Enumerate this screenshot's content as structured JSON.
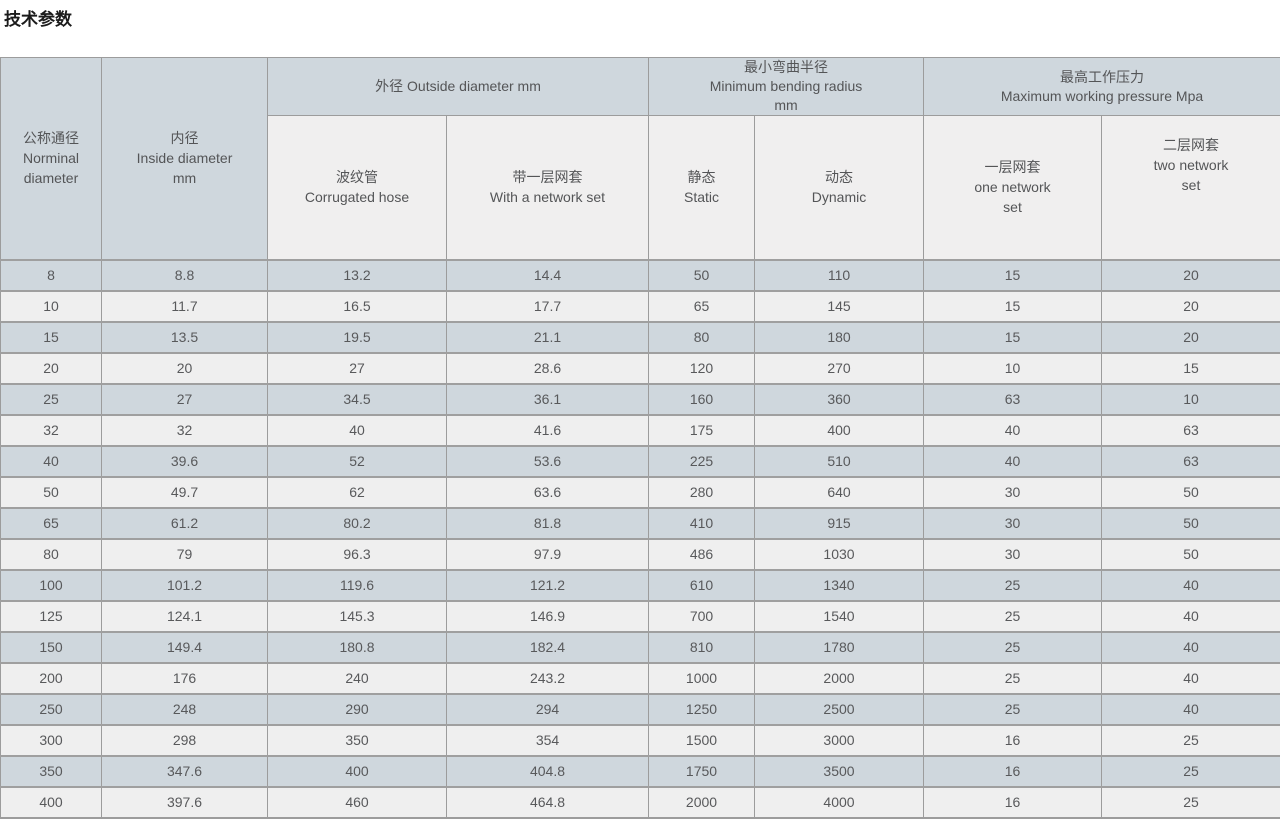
{
  "page": {
    "title": "技术参数"
  },
  "colors": {
    "header_blue_gray": "#cfd7dd",
    "subheader_bg": "#f0efef",
    "row_odd_bg": "#cfd7dd",
    "row_even_bg": "#efefef",
    "border": "#9c9c9c",
    "text": "#58595b",
    "title_text": "#1b1b1b"
  },
  "table": {
    "header": {
      "nominal": [
        "公称通径",
        "Norminal",
        "diameter"
      ],
      "inside": [
        "内径",
        "Inside diameter",
        "mm"
      ],
      "outside_group": [
        "外径 Outside diameter mm"
      ],
      "bend_group": [
        "最小弯曲半径",
        "Minimum bending radius",
        "mm"
      ],
      "pressure_group": [
        "最高工作压力",
        "Maximum working pressure Mpa"
      ],
      "corrugated": [
        "波纹管",
        "Corrugated hose"
      ],
      "with_network": [
        "带一层网套",
        "With a network set"
      ],
      "static": [
        "静态",
        "Static"
      ],
      "dynamic": [
        "动态",
        "Dynamic"
      ],
      "one_network": [
        "一层网套",
        "one network",
        "set"
      ],
      "two_network": [
        "二层网套",
        "two network",
        "set"
      ]
    },
    "rows": [
      [
        "8",
        "8.8",
        "13.2",
        "14.4",
        "50",
        "110",
        "15",
        "20"
      ],
      [
        "10",
        "11.7",
        "16.5",
        "17.7",
        "65",
        "145",
        "15",
        "20"
      ],
      [
        "15",
        "13.5",
        "19.5",
        "21.1",
        "80",
        "180",
        "15",
        "20"
      ],
      [
        "20",
        "20",
        "27",
        "28.6",
        "120",
        "270",
        "10",
        "15"
      ],
      [
        "25",
        "27",
        "34.5",
        "36.1",
        "160",
        "360",
        "63",
        "10"
      ],
      [
        "32",
        "32",
        "40",
        "41.6",
        "175",
        "400",
        "40",
        "63"
      ],
      [
        "40",
        "39.6",
        "52",
        "53.6",
        "225",
        "510",
        "40",
        "63"
      ],
      [
        "50",
        "49.7",
        "62",
        "63.6",
        "280",
        "640",
        "30",
        "50"
      ],
      [
        "65",
        "61.2",
        "80.2",
        "81.8",
        "410",
        "915",
        "30",
        "50"
      ],
      [
        "80",
        "79",
        "96.3",
        "97.9",
        "486",
        "1030",
        "30",
        "50"
      ],
      [
        "100",
        "101.2",
        "119.6",
        "121.2",
        "610",
        "1340",
        "25",
        "40"
      ],
      [
        "125",
        "124.1",
        "145.3",
        "146.9",
        "700",
        "1540",
        "25",
        "40"
      ],
      [
        "150",
        "149.4",
        "180.8",
        "182.4",
        "810",
        "1780",
        "25",
        "40"
      ],
      [
        "200",
        "176",
        "240",
        "243.2",
        "1000",
        "2000",
        "25",
        "40"
      ],
      [
        "250",
        "248",
        "290",
        "294",
        "1250",
        "2500",
        "25",
        "40"
      ],
      [
        "300",
        "298",
        "350",
        "354",
        "1500",
        "3000",
        "16",
        "25"
      ],
      [
        "350",
        "347.6",
        "400",
        "404.8",
        "1750",
        "3500",
        "16",
        "25"
      ],
      [
        "400",
        "397.6",
        "460",
        "464.8",
        "2000",
        "4000",
        "16",
        "25"
      ]
    ]
  }
}
